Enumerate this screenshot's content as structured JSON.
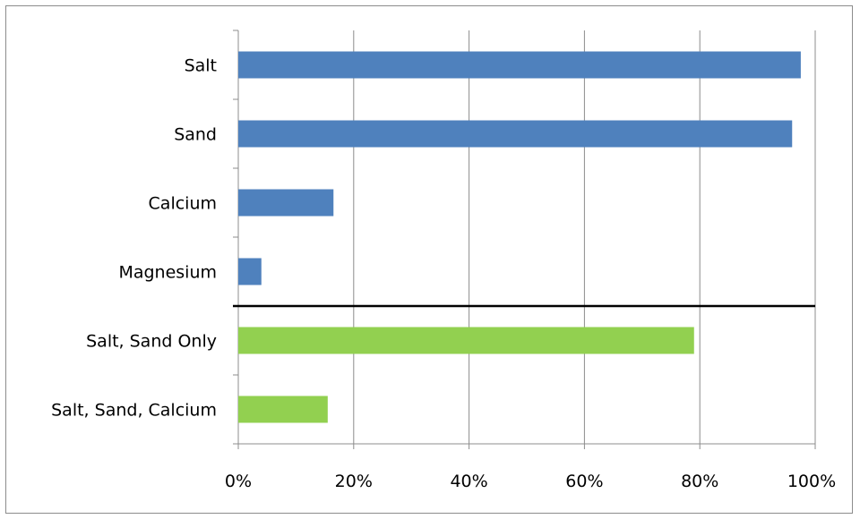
{
  "chart_data": {
    "type": "bar",
    "orientation": "horizontal",
    "title": "",
    "xlabel": "",
    "ylabel": "",
    "categories": [
      "Salt",
      "Sand",
      "Calcium",
      "Magnesium",
      "Salt, Sand Only",
      "Salt, Sand, Calcium"
    ],
    "values": [
      0.975,
      0.96,
      0.165,
      0.04,
      0.79,
      0.155
    ],
    "bar_colors": [
      "#4f81bd",
      "#4f81bd",
      "#4f81bd",
      "#4f81bd",
      "#92d050",
      "#92d050"
    ],
    "xlim": [
      0,
      1
    ],
    "xticks": [
      0,
      0.2,
      0.4,
      0.6,
      0.8,
      1.0
    ],
    "xtick_labels": [
      "0%",
      "20%",
      "40%",
      "60%",
      "80%",
      "100%"
    ],
    "grid": "vertical",
    "legend": "none",
    "separator_after_index": 3
  }
}
